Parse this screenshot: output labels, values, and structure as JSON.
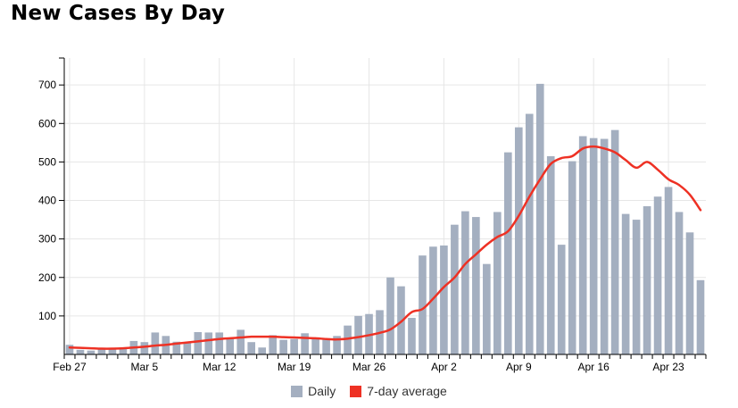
{
  "page": {
    "title": "New Cases By Day"
  },
  "colors": {
    "bar": "#a4afc0",
    "line": "#ee3124",
    "grid": "#e6e6e6",
    "axis": "#000000"
  },
  "chart_data": {
    "type": "bar",
    "title": "New Cases By Day",
    "xlabel": "",
    "ylabel": "",
    "ylim": [
      0,
      770
    ],
    "yticks": [
      100,
      200,
      300,
      400,
      500,
      600,
      700
    ],
    "xtick_labels": [
      {
        "index": 0,
        "label": "Feb 27"
      },
      {
        "index": 7,
        "label": "Mar 5"
      },
      {
        "index": 14,
        "label": "Mar 12"
      },
      {
        "index": 21,
        "label": "Mar 19"
      },
      {
        "index": 28,
        "label": "Mar 26"
      },
      {
        "index": 35,
        "label": "Apr 2"
      },
      {
        "index": 42,
        "label": "Apr 9"
      },
      {
        "index": 49,
        "label": "Apr 16"
      },
      {
        "index": 56,
        "label": "Apr 23"
      }
    ],
    "grid": true,
    "legend_position": "bottom",
    "series": [
      {
        "name": "Daily",
        "kind": "bar",
        "values": [
          25,
          12,
          10,
          13,
          15,
          15,
          35,
          32,
          57,
          48,
          33,
          30,
          58,
          57,
          57,
          40,
          64,
          32,
          18,
          50,
          38,
          40,
          55,
          40,
          42,
          48,
          75,
          100,
          105,
          115,
          200,
          177,
          95,
          257,
          280,
          283,
          337,
          372,
          357,
          235,
          370,
          525,
          590,
          625,
          703,
          515,
          285,
          502,
          567,
          562,
          560,
          583,
          365,
          350,
          385,
          410,
          435,
          370,
          317,
          193
        ]
      },
      {
        "name": "7-day average",
        "kind": "line",
        "values": [
          18,
          17,
          16,
          15,
          15,
          16,
          18,
          20,
          23,
          25,
          28,
          31,
          34,
          37,
          40,
          42,
          44,
          46,
          46,
          46,
          45,
          44,
          43,
          42,
          40,
          39,
          41,
          45,
          50,
          56,
          65,
          85,
          110,
          118,
          145,
          175,
          200,
          235,
          260,
          285,
          305,
          320,
          360,
          410,
          455,
          495,
          510,
          515,
          535,
          540,
          535,
          525,
          505,
          485,
          500,
          480,
          455,
          440,
          415,
          375
        ]
      }
    ]
  }
}
